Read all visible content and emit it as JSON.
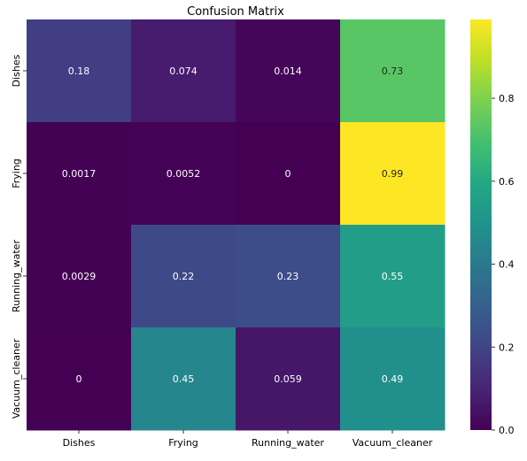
{
  "chart_data": {
    "type": "heatmap",
    "title": "Confusion Matrix",
    "xlabel": "",
    "ylabel": "",
    "row_labels": [
      "Dishes",
      "Frying",
      "Running_water",
      "Vacuum_cleaner"
    ],
    "col_labels": [
      "Dishes",
      "Frying",
      "Running_water",
      "Vacuum_cleaner"
    ],
    "values": [
      [
        0.18,
        0.074,
        0.014,
        0.73
      ],
      [
        0.0017,
        0.0052,
        0,
        0.99
      ],
      [
        0.0029,
        0.22,
        0.23,
        0.55
      ],
      [
        0,
        0.45,
        0.059,
        0.49
      ]
    ],
    "cell_labels": [
      [
        "0.18",
        "0.074",
        "0.014",
        "0.73"
      ],
      [
        "0.0017",
        "0.0052",
        "0",
        "0.99"
      ],
      [
        "0.0029",
        "0.22",
        "0.23",
        "0.55"
      ],
      [
        "0",
        "0.45",
        "0.059",
        "0.49"
      ]
    ],
    "colormap": "viridis",
    "colorbar": {
      "vmin": 0,
      "vmax": 0.99,
      "ticks": [
        0.0,
        0.2,
        0.4,
        0.6,
        0.8
      ],
      "tick_labels": [
        "0.0",
        "0.2",
        "0.4",
        "0.6",
        "0.8"
      ]
    }
  }
}
